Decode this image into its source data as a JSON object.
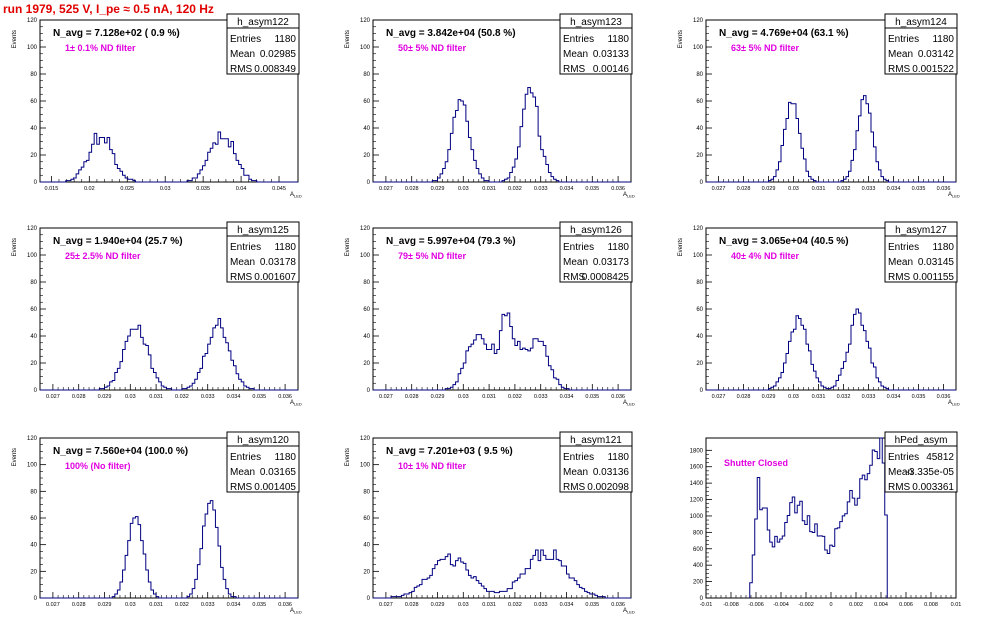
{
  "page": {
    "run_title": "run 1979,   525 V, I_pe ≈ 0.5 nA, 120 Hz"
  },
  "colors": {
    "hist_line": "#000080",
    "axis": "#000000",
    "title_red": "#e00000",
    "annot_magenta": "#e000e0"
  },
  "chart_data": [
    {
      "type": "bar",
      "name": "h_asym122",
      "ylabel": "Events",
      "xlabel": "A_LED",
      "nevt_label": "N_avg = 7.128e+02 ( 0.9 %)",
      "filter_label": "1± 0.1% ND filter",
      "stats": [
        [
          "Entries",
          "1180"
        ],
        [
          "Mean",
          "0.02985"
        ],
        [
          "RMS",
          "0.008349"
        ]
      ],
      "xlim": [
        0.0135,
        0.0475
      ],
      "ylim": [
        0,
        120
      ],
      "xticks": [
        0.015,
        0.02,
        0.025,
        0.03,
        0.035,
        0.04,
        0.045
      ],
      "xticklabels": [
        "0.015",
        "0.02",
        "0.025",
        "0.03",
        "0.035",
        "0.04",
        "0.045"
      ],
      "yticks": [
        0,
        20,
        40,
        60,
        80,
        100,
        120
      ],
      "peaks": [
        [
          0.0215,
          0.0016,
          28,
          40
        ],
        [
          0.0375,
          0.0016,
          30,
          42
        ]
      ]
    },
    {
      "type": "bar",
      "name": "h_asym123",
      "ylabel": "Events",
      "xlabel": "A_LED",
      "nevt_label": "N_avg = 3.842e+04 (50.8 %)",
      "filter_label": "50± 5% ND filter",
      "stats": [
        [
          "Entries",
          "1180"
        ],
        [
          "Mean",
          "0.03133"
        ],
        [
          "RMS",
          "0.00146"
        ]
      ],
      "xlim": [
        0.0265,
        0.0365
      ],
      "ylim": [
        0,
        120
      ],
      "xticks": [
        0.027,
        0.028,
        0.029,
        0.03,
        0.031,
        0.032,
        0.033,
        0.034,
        0.035,
        0.036
      ],
      "xticklabels": [
        "0.027",
        "0.028",
        "0.029",
        "0.03",
        "0.031",
        "0.032",
        "0.033",
        "0.034",
        "0.035",
        "0.036"
      ],
      "yticks": [
        0,
        20,
        40,
        60,
        80,
        100,
        120
      ],
      "peaks": [
        [
          0.0299,
          0.00035,
          52,
          62
        ],
        [
          0.0326,
          0.00035,
          55,
          74
        ]
      ]
    },
    {
      "type": "bar",
      "name": "h_asym124",
      "ylabel": "Events",
      "xlabel": "A_LED",
      "nevt_label": "N_avg = 4.769e+04 (63.1 %)",
      "filter_label": "63± 5% ND filter",
      "stats": [
        [
          "Entries",
          "1180"
        ],
        [
          "Mean",
          "0.03142"
        ],
        [
          "RMS",
          "0.001522"
        ]
      ],
      "xlim": [
        0.0265,
        0.0365
      ],
      "ylim": [
        0,
        120
      ],
      "xticks": [
        0.027,
        0.028,
        0.029,
        0.03,
        0.031,
        0.032,
        0.033,
        0.034,
        0.035,
        0.036
      ],
      "xticklabels": [
        "0.027",
        "0.028",
        "0.029",
        "0.03",
        "0.031",
        "0.032",
        "0.033",
        "0.034",
        "0.035",
        "0.036"
      ],
      "yticks": [
        0,
        20,
        40,
        60,
        80,
        100,
        120
      ],
      "peaks": [
        [
          0.02995,
          0.0003,
          58,
          68
        ],
        [
          0.03285,
          0.0003,
          58,
          66
        ]
      ]
    },
    {
      "type": "bar",
      "name": "h_asym125",
      "ylabel": "Events",
      "xlabel": "A_LED",
      "nevt_label": "N_avg = 1.940e+04 (25.7 %)",
      "filter_label": "25± 2.5% ND filter",
      "stats": [
        [
          "Entries",
          "1180"
        ],
        [
          "Mean",
          "0.03178"
        ],
        [
          "RMS",
          "0.001607"
        ]
      ],
      "xlim": [
        0.0265,
        0.0365
      ],
      "ylim": [
        0,
        120
      ],
      "xticks": [
        0.027,
        0.028,
        0.029,
        0.03,
        0.031,
        0.032,
        0.033,
        0.034,
        0.035,
        0.036
      ],
      "xticklabels": [
        "0.027",
        "0.028",
        "0.029",
        "0.03",
        "0.031",
        "0.032",
        "0.033",
        "0.034",
        "0.035",
        "0.036"
      ],
      "yticks": [
        0,
        20,
        40,
        60,
        80,
        100,
        120
      ],
      "peaks": [
        [
          0.0302,
          0.00045,
          44,
          56
        ],
        [
          0.0334,
          0.00045,
          44,
          54
        ]
      ]
    },
    {
      "type": "bar",
      "name": "h_asym126",
      "ylabel": "Events",
      "xlabel": "A_LED",
      "nevt_label": "N_avg = 5.997e+04 (79.3 %)",
      "filter_label": "79± 5% ND filter",
      "stats": [
        [
          "Entries",
          "1180"
        ],
        [
          "Mean",
          "0.03173"
        ],
        [
          "RMS",
          "0.0008425"
        ]
      ],
      "xlim": [
        0.0265,
        0.0365
      ],
      "ylim": [
        0,
        120
      ],
      "xticks": [
        0.027,
        0.028,
        0.029,
        0.03,
        0.031,
        0.032,
        0.033,
        0.034,
        0.035,
        0.036
      ],
      "xticklabels": [
        "0.027",
        "0.028",
        "0.029",
        "0.03",
        "0.031",
        "0.032",
        "0.033",
        "0.034",
        "0.035",
        "0.036"
      ],
      "yticks": [
        0,
        20,
        40,
        60,
        80,
        100,
        120
      ],
      "peaks": [
        [
          0.0305,
          0.0004,
          34,
          44
        ],
        [
          0.0317,
          0.0004,
          38,
          60
        ],
        [
          0.0329,
          0.0004,
          34,
          44
        ]
      ]
    },
    {
      "type": "bar",
      "name": "h_asym127",
      "ylabel": "Events",
      "xlabel": "A_LED",
      "nevt_label": "N_avg = 3.065e+04 (40.5 %)",
      "filter_label": "40± 4% ND filter",
      "stats": [
        [
          "Entries",
          "1180"
        ],
        [
          "Mean",
          "0.03145"
        ],
        [
          "RMS",
          "0.001155"
        ]
      ],
      "xlim": [
        0.0265,
        0.0365
      ],
      "ylim": [
        0,
        120
      ],
      "xticks": [
        0.027,
        0.028,
        0.029,
        0.03,
        0.031,
        0.032,
        0.033,
        0.034,
        0.035,
        0.036
      ],
      "xticklabels": [
        "0.027",
        "0.028",
        "0.029",
        "0.03",
        "0.031",
        "0.032",
        "0.033",
        "0.034",
        "0.035",
        "0.036"
      ],
      "yticks": [
        0,
        20,
        40,
        60,
        80,
        100,
        120
      ],
      "peaks": [
        [
          0.0302,
          0.0004,
          48,
          56
        ],
        [
          0.0326,
          0.0004,
          50,
          64
        ]
      ]
    },
    {
      "type": "bar",
      "name": "h_asym120",
      "ylabel": "Events",
      "xlabel": "A_LED",
      "nevt_label": "N_avg = 7.560e+04 (100.0 %)",
      "filter_label": "100% (No filter)",
      "stats": [
        [
          "Entries",
          "1180"
        ],
        [
          "Mean",
          "0.03165"
        ],
        [
          "RMS",
          "0.001405"
        ]
      ],
      "xlim": [
        0.0265,
        0.0365
      ],
      "ylim": [
        0,
        120
      ],
      "xticks": [
        0.027,
        0.028,
        0.029,
        0.03,
        0.031,
        0.032,
        0.033,
        0.034,
        0.035,
        0.036
      ],
      "xticklabels": [
        "0.027",
        "0.028",
        "0.029",
        "0.03",
        "0.031",
        "0.032",
        "0.033",
        "0.034",
        "0.035",
        "0.036"
      ],
      "yticks": [
        0,
        20,
        40,
        60,
        80,
        100,
        120
      ],
      "peaks": [
        [
          0.0302,
          0.0003,
          60,
          66
        ],
        [
          0.0331,
          0.0003,
          70,
          78
        ]
      ]
    },
    {
      "type": "bar",
      "name": "h_asym121",
      "ylabel": "Events",
      "xlabel": "A_LED",
      "nevt_label": "N_avg = 7.201e+03 ( 9.5 %)",
      "filter_label": "10± 1% ND filter",
      "stats": [
        [
          "Entries",
          "1180"
        ],
        [
          "Mean",
          "0.03136"
        ],
        [
          "RMS",
          "0.002098"
        ]
      ],
      "xlim": [
        0.0265,
        0.0365
      ],
      "ylim": [
        0,
        120
      ],
      "xticks": [
        0.027,
        0.028,
        0.029,
        0.03,
        0.031,
        0.032,
        0.033,
        0.034,
        0.035,
        0.036
      ],
      "xticklabels": [
        "0.027",
        "0.028",
        "0.029",
        "0.03",
        "0.031",
        "0.032",
        "0.033",
        "0.034",
        "0.035",
        "0.036"
      ],
      "yticks": [
        0,
        20,
        40,
        60,
        80,
        100,
        120
      ],
      "peaks": [
        [
          0.0295,
          0.0008,
          24,
          34
        ],
        [
          0.0332,
          0.0008,
          28,
          40
        ]
      ]
    },
    {
      "type": "bar",
      "name": "hPed_asym",
      "ylabel": "",
      "xlabel": "",
      "nevt_label": "",
      "filter_label": "Shutter Closed",
      "stats": [
        [
          "Entries",
          "45812"
        ],
        [
          "Mean",
          "-3.335e-05"
        ],
        [
          "RMS",
          "0.003361"
        ]
      ],
      "xlim": [
        -0.01,
        0.01
      ],
      "ylim": [
        0,
        1950
      ],
      "xticks": [
        -0.01,
        -0.008,
        -0.006,
        -0.004,
        -0.002,
        0,
        0.002,
        0.004,
        0.006,
        0.008,
        0.01
      ],
      "xticklabels": [
        "-0.01",
        "-0.008",
        "-0.006",
        "-0.004",
        "-0.002",
        "0",
        "0.002",
        "0.004",
        "0.006",
        "0.008",
        "0.01"
      ],
      "yticks": [
        0,
        200,
        400,
        600,
        800,
        1000,
        1200,
        1400,
        1600,
        1800
      ],
      "hist_range": [
        -0.0065,
        0.0045
      ],
      "shape": [
        [
          -0.0065,
          0
        ],
        [
          -0.0062,
          600
        ],
        [
          -0.0058,
          1300
        ],
        [
          -0.0054,
          1100
        ],
        [
          -0.005,
          850
        ],
        [
          -0.0046,
          700
        ],
        [
          -0.0042,
          650
        ],
        [
          -0.0038,
          800
        ],
        [
          -0.0034,
          1000
        ],
        [
          -0.003,
          1120
        ],
        [
          -0.0026,
          1100
        ],
        [
          -0.0022,
          980
        ],
        [
          -0.0018,
          900
        ],
        [
          -0.0014,
          850
        ],
        [
          -0.001,
          760
        ],
        [
          -0.0006,
          680
        ],
        [
          -0.0002,
          620
        ],
        [
          0.0002,
          700
        ],
        [
          0.0006,
          850
        ],
        [
          0.001,
          980
        ],
        [
          0.0014,
          1100
        ],
        [
          0.0018,
          1250
        ],
        [
          0.0022,
          1380
        ],
        [
          0.0026,
          1500
        ],
        [
          0.003,
          1600
        ],
        [
          0.0034,
          1650
        ],
        [
          0.0038,
          1720
        ],
        [
          0.0041,
          1900
        ],
        [
          0.0043,
          1800
        ],
        [
          0.0045,
          0
        ]
      ]
    }
  ]
}
